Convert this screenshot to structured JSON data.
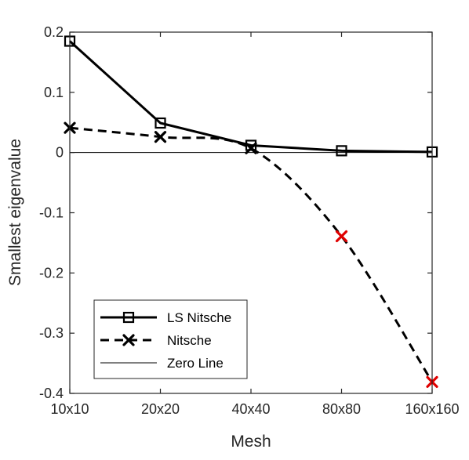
{
  "chart_data": {
    "type": "line",
    "title": "",
    "xlabel": "Mesh",
    "ylabel": "Smallest eigenvalue",
    "categories": [
      "10x10",
      "20x20",
      "40x40",
      "80x80",
      "160x160"
    ],
    "yticks": [
      "0.2",
      "0.1",
      "0",
      "-0.1",
      "-0.2",
      "-0.3",
      "-0.4"
    ],
    "ylim": [
      -0.4,
      0.2
    ],
    "grid": false,
    "legend_position": "bottom-left",
    "series": [
      {
        "name": "LS Nitsche",
        "values": [
          0.185,
          0.049,
          0.012,
          0.003,
          0.001
        ],
        "color": "#000000",
        "line_style": "solid",
        "marker": "square"
      },
      {
        "name": "Nitsche",
        "values": [
          0.041,
          0.026,
          0.007,
          -0.139,
          -0.381
        ],
        "color": "#000000",
        "line_style": "dashed",
        "marker": "x",
        "negative_marker_color": "#e00000"
      },
      {
        "name": "Zero Line",
        "values": [
          0,
          0,
          0,
          0,
          0
        ],
        "color": "#000000",
        "line_style": "thin-solid",
        "marker": "none"
      }
    ]
  }
}
